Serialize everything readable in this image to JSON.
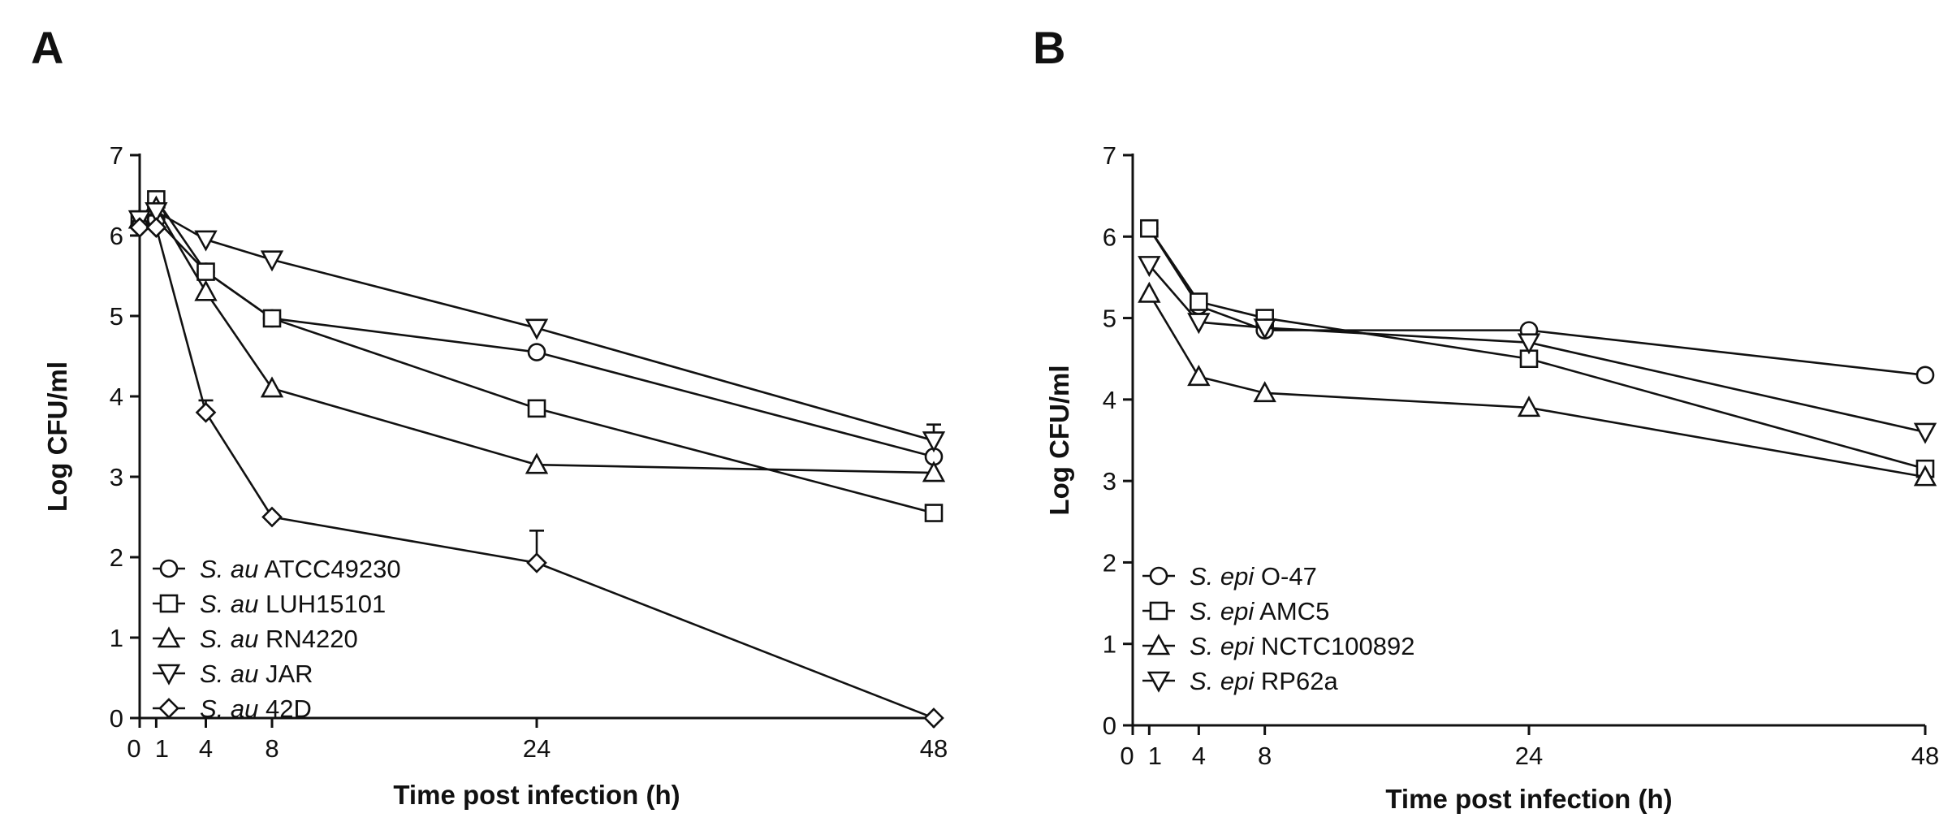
{
  "chart_data": [
    {
      "type": "line",
      "panel": "A",
      "xlabel": "Time post infection (h)",
      "ylabel": "Log CFU/ml",
      "x_ticks": [
        "0",
        "1",
        "4",
        "8",
        "24",
        "48"
      ],
      "y_ticks": [
        "0",
        "1",
        "2",
        "3",
        "4",
        "5",
        "6",
        "7"
      ],
      "xlim": [
        0,
        48
      ],
      "ylim": [
        0,
        7
      ],
      "legend_position": "bottom-left",
      "x": [
        0,
        1,
        4,
        8,
        24,
        48
      ],
      "series": [
        {
          "species": "S. au",
          "strain": "ATCC49230",
          "marker": "circle",
          "x": [
            0,
            1,
            4,
            8,
            24,
            48
          ],
          "values": [
            6.15,
            6.2,
            5.55,
            4.97,
            4.55,
            3.25
          ]
        },
        {
          "species": "S. au",
          "strain": "LUH15101",
          "marker": "square",
          "x": [
            0,
            1,
            4,
            8,
            24,
            48
          ],
          "values": [
            6.2,
            6.45,
            5.55,
            4.97,
            3.85,
            2.55
          ]
        },
        {
          "species": "S. au",
          "strain": "RN4220",
          "marker": "triangle-up",
          "x": [
            0,
            1,
            4,
            8,
            24,
            48
          ],
          "values": [
            6.2,
            6.35,
            5.3,
            4.1,
            3.15,
            3.05
          ]
        },
        {
          "species": "S. au",
          "strain": "JAR",
          "marker": "triangle-down",
          "x": [
            0,
            1,
            4,
            8,
            24,
            48
          ],
          "values": [
            6.2,
            6.3,
            5.95,
            5.7,
            4.85,
            3.45
          ],
          "error_upper": [
            0,
            0,
            0,
            0,
            0,
            0.2
          ]
        },
        {
          "species": "S. au",
          "strain": "42D",
          "marker": "diamond",
          "x": [
            0,
            1,
            4,
            8,
            24,
            48
          ],
          "values": [
            6.1,
            6.1,
            3.8,
            2.5,
            1.93,
            0.0
          ],
          "error_upper": [
            0,
            0,
            0.15,
            0,
            0.4,
            0
          ]
        }
      ]
    },
    {
      "type": "line",
      "panel": "B",
      "xlabel": "Time post infection (h)",
      "ylabel": "Log CFU/ml",
      "x_ticks": [
        "0",
        "1",
        "4",
        "8",
        "24",
        "48"
      ],
      "y_ticks": [
        "0",
        "1",
        "2",
        "3",
        "4",
        "5",
        "6",
        "7"
      ],
      "xlim": [
        0,
        48
      ],
      "ylim": [
        0,
        7
      ],
      "legend_position": "bottom-left",
      "x": [
        1,
        4,
        8,
        24,
        48
      ],
      "series": [
        {
          "species": "S. epi",
          "strain": "O-47",
          "marker": "circle",
          "x": [
            1,
            4,
            8,
            24,
            48
          ],
          "values": [
            6.1,
            5.15,
            4.85,
            4.85,
            4.3
          ]
        },
        {
          "species": "S. epi",
          "strain": "AMC5",
          "marker": "square",
          "x": [
            1,
            4,
            8,
            24,
            48
          ],
          "values": [
            6.1,
            5.2,
            5.0,
            4.5,
            3.15
          ]
        },
        {
          "species": "S. epi",
          "strain": "NCTC100892",
          "marker": "triangle-up",
          "x": [
            1,
            4,
            8,
            24,
            48
          ],
          "values": [
            5.3,
            4.28,
            4.08,
            3.9,
            3.05
          ]
        },
        {
          "species": "S. epi",
          "strain": "RP62a",
          "marker": "triangle-down",
          "x": [
            1,
            4,
            8,
            24,
            48
          ],
          "values": [
            5.65,
            4.95,
            4.88,
            4.7,
            3.6
          ]
        }
      ]
    }
  ]
}
